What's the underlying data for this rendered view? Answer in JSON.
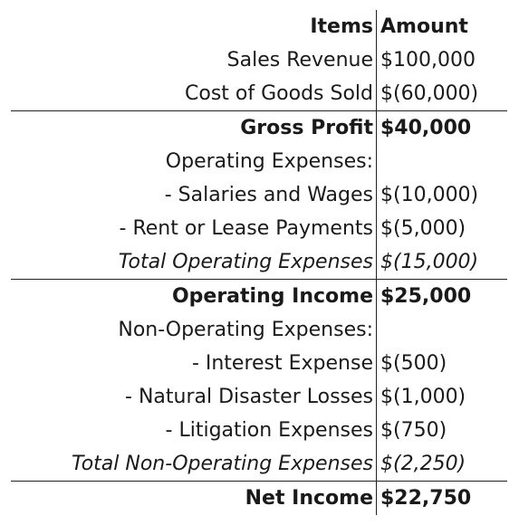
{
  "header": {
    "items_label": "Items",
    "amount_label": "Amount"
  },
  "rows": [
    {
      "item": "Sales Revenue",
      "amount": "$100,000"
    },
    {
      "item": "Cost of Goods Sold",
      "amount": "$(60,000)"
    },
    {
      "item": "Gross Profit",
      "amount": "$40,000"
    },
    {
      "item": "Operating Expenses:",
      "amount": ""
    },
    {
      "item": "- Salaries and Wages",
      "amount": "$(10,000)"
    },
    {
      "item": "- Rent or Lease Payments",
      "amount": "$(5,000)"
    },
    {
      "item": "Total Operating Expenses",
      "amount": "$(15,000)"
    },
    {
      "item": "Operating Income",
      "amount": "$25,000"
    },
    {
      "item": "Non-Operating Expenses:",
      "amount": ""
    },
    {
      "item": "- Interest Expense",
      "amount": "$(500)"
    },
    {
      "item": "- Natural Disaster Losses",
      "amount": "$(1,000)"
    },
    {
      "item": "- Litigation Expenses",
      "amount": "$(750)"
    },
    {
      "item": "Total Non-Operating Expenses",
      "amount": "$(2,250)"
    },
    {
      "item": "Net Income",
      "amount": "$22,750"
    }
  ]
}
